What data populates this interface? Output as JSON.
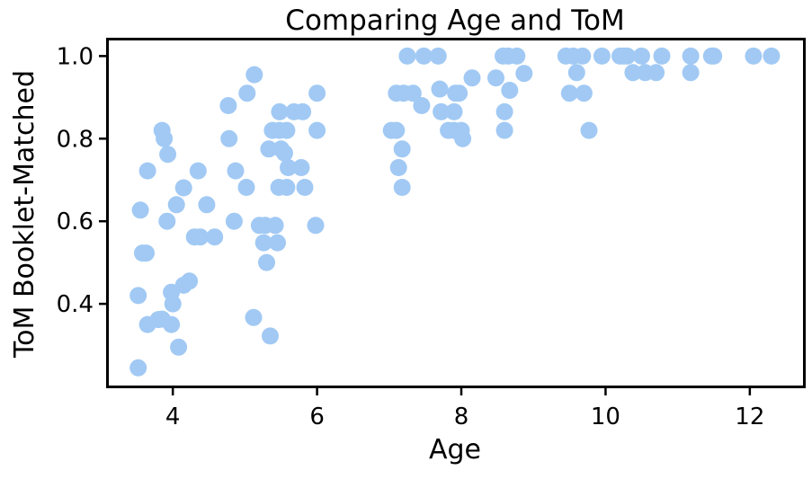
{
  "chart_data": {
    "type": "scatter",
    "title": "Comparing Age and ToM",
    "xlabel": "Age",
    "ylabel": "ToM Booklet-Matched",
    "xlim": [
      3.1,
      12.75
    ],
    "ylim": [
      0.2,
      1.04
    ],
    "xticks": [
      4,
      6,
      8,
      10,
      12
    ],
    "yticks": [
      0.4,
      0.6,
      0.8,
      1.0
    ],
    "xtick_labels": [
      "4",
      "6",
      "8",
      "10",
      "12"
    ],
    "ytick_labels": [
      "0.4",
      "0.6",
      "0.8",
      "1.0"
    ],
    "grid": false,
    "legend": "none",
    "marker_color": "#a1c9f4",
    "points": [
      {
        "x": 3.52,
        "y": 0.245
      },
      {
        "x": 3.52,
        "y": 0.42
      },
      {
        "x": 3.55,
        "y": 0.627
      },
      {
        "x": 3.58,
        "y": 0.523
      },
      {
        "x": 3.63,
        "y": 0.523
      },
      {
        "x": 3.65,
        "y": 0.35
      },
      {
        "x": 3.65,
        "y": 0.722
      },
      {
        "x": 3.8,
        "y": 0.362
      },
      {
        "x": 3.85,
        "y": 0.363
      },
      {
        "x": 3.85,
        "y": 0.82
      },
      {
        "x": 3.88,
        "y": 0.8
      },
      {
        "x": 3.92,
        "y": 0.6
      },
      {
        "x": 3.93,
        "y": 0.762
      },
      {
        "x": 3.98,
        "y": 0.35
      },
      {
        "x": 3.98,
        "y": 0.428
      },
      {
        "x": 4.0,
        "y": 0.4
      },
      {
        "x": 4.05,
        "y": 0.64
      },
      {
        "x": 4.08,
        "y": 0.295
      },
      {
        "x": 4.15,
        "y": 0.445
      },
      {
        "x": 4.15,
        "y": 0.681
      },
      {
        "x": 4.23,
        "y": 0.455
      },
      {
        "x": 4.3,
        "y": 0.562
      },
      {
        "x": 4.35,
        "y": 0.722
      },
      {
        "x": 4.38,
        "y": 0.562
      },
      {
        "x": 4.47,
        "y": 0.64
      },
      {
        "x": 4.58,
        "y": 0.562
      },
      {
        "x": 4.77,
        "y": 0.88
      },
      {
        "x": 4.78,
        "y": 0.8
      },
      {
        "x": 4.85,
        "y": 0.6
      },
      {
        "x": 4.87,
        "y": 0.722
      },
      {
        "x": 5.02,
        "y": 0.682
      },
      {
        "x": 5.03,
        "y": 0.91
      },
      {
        "x": 5.12,
        "y": 0.367
      },
      {
        "x": 5.13,
        "y": 0.955
      },
      {
        "x": 5.2,
        "y": 0.59
      },
      {
        "x": 5.26,
        "y": 0.548
      },
      {
        "x": 5.28,
        "y": 0.59
      },
      {
        "x": 5.3,
        "y": 0.5
      },
      {
        "x": 5.33,
        "y": 0.775
      },
      {
        "x": 5.35,
        "y": 0.322
      },
      {
        "x": 5.38,
        "y": 0.82
      },
      {
        "x": 5.42,
        "y": 0.59
      },
      {
        "x": 5.45,
        "y": 0.548
      },
      {
        "x": 5.47,
        "y": 0.682
      },
      {
        "x": 5.48,
        "y": 0.82
      },
      {
        "x": 5.48,
        "y": 0.865
      },
      {
        "x": 5.5,
        "y": 0.775
      },
      {
        "x": 5.55,
        "y": 0.765
      },
      {
        "x": 5.58,
        "y": 0.682
      },
      {
        "x": 5.58,
        "y": 0.82
      },
      {
        "x": 5.6,
        "y": 0.73
      },
      {
        "x": 5.68,
        "y": 0.865
      },
      {
        "x": 5.78,
        "y": 0.73
      },
      {
        "x": 5.8,
        "y": 0.865
      },
      {
        "x": 5.83,
        "y": 0.682
      },
      {
        "x": 5.98,
        "y": 0.59
      },
      {
        "x": 6.0,
        "y": 0.82
      },
      {
        "x": 6.0,
        "y": 0.91
      },
      {
        "x": 7.03,
        "y": 0.82
      },
      {
        "x": 7.1,
        "y": 0.82
      },
      {
        "x": 7.1,
        "y": 0.91
      },
      {
        "x": 7.13,
        "y": 0.73
      },
      {
        "x": 7.18,
        "y": 0.682
      },
      {
        "x": 7.18,
        "y": 0.775
      },
      {
        "x": 7.2,
        "y": 0.91
      },
      {
        "x": 7.25,
        "y": 1.0
      },
      {
        "x": 7.33,
        "y": 0.91
      },
      {
        "x": 7.45,
        "y": 0.88
      },
      {
        "x": 7.48,
        "y": 1.0
      },
      {
        "x": 7.68,
        "y": 1.0
      },
      {
        "x": 7.7,
        "y": 0.92
      },
      {
        "x": 7.72,
        "y": 0.865
      },
      {
        "x": 7.82,
        "y": 0.82
      },
      {
        "x": 7.9,
        "y": 0.82
      },
      {
        "x": 7.9,
        "y": 0.865
      },
      {
        "x": 7.92,
        "y": 0.91
      },
      {
        "x": 7.97,
        "y": 0.91
      },
      {
        "x": 8.0,
        "y": 0.82
      },
      {
        "x": 8.02,
        "y": 0.8
      },
      {
        "x": 8.15,
        "y": 0.947
      },
      {
        "x": 8.48,
        "y": 0.947
      },
      {
        "x": 8.58,
        "y": 1.0
      },
      {
        "x": 8.6,
        "y": 0.82
      },
      {
        "x": 8.6,
        "y": 0.865
      },
      {
        "x": 8.65,
        "y": 1.0
      },
      {
        "x": 8.67,
        "y": 0.917
      },
      {
        "x": 8.77,
        "y": 1.0
      },
      {
        "x": 8.87,
        "y": 0.958
      },
      {
        "x": 9.45,
        "y": 1.0
      },
      {
        "x": 9.5,
        "y": 0.91
      },
      {
        "x": 9.55,
        "y": 1.0
      },
      {
        "x": 9.6,
        "y": 0.96
      },
      {
        "x": 9.68,
        "y": 1.0
      },
      {
        "x": 9.7,
        "y": 0.91
      },
      {
        "x": 9.77,
        "y": 0.82
      },
      {
        "x": 9.95,
        "y": 1.0
      },
      {
        "x": 10.2,
        "y": 1.0
      },
      {
        "x": 10.25,
        "y": 1.0
      },
      {
        "x": 10.3,
        "y": 1.0
      },
      {
        "x": 10.38,
        "y": 0.96
      },
      {
        "x": 10.5,
        "y": 1.0
      },
      {
        "x": 10.55,
        "y": 0.96
      },
      {
        "x": 10.7,
        "y": 0.96
      },
      {
        "x": 10.78,
        "y": 1.0
      },
      {
        "x": 11.18,
        "y": 1.0
      },
      {
        "x": 11.18,
        "y": 0.96
      },
      {
        "x": 11.47,
        "y": 1.0
      },
      {
        "x": 11.5,
        "y": 1.0
      },
      {
        "x": 12.05,
        "y": 1.0
      },
      {
        "x": 12.3,
        "y": 1.0
      }
    ]
  }
}
